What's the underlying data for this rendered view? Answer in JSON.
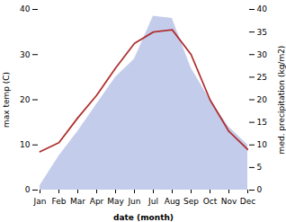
{
  "chart_data": {
    "type": "line",
    "xlabel": "date (month)",
    "ylabel": "max temp (C)",
    "y2label": "med. precipitation (kg/m2)",
    "categories": [
      "Jan",
      "Feb",
      "Mar",
      "Apr",
      "May",
      "Jun",
      "Jul",
      "Aug",
      "Sep",
      "Oct",
      "Nov",
      "Dec"
    ],
    "series": [
      {
        "type": "area",
        "axis": "y2",
        "color": "#b8c4e8",
        "values": [
          1.0,
          7.5,
          13.0,
          19.0,
          25.0,
          29.0,
          38.5,
          38.0,
          27.0,
          20.0,
          14.0,
          10.0
        ]
      },
      {
        "type": "line",
        "color": "#b03030",
        "values": [
          8.5,
          10.5,
          16.0,
          21.0,
          27.0,
          32.5,
          35.0,
          35.5,
          30.0,
          20.0,
          13.0,
          9.0
        ]
      }
    ],
    "ylim": [
      0,
      40
    ],
    "yticks": [
      0,
      10,
      20,
      30,
      40
    ],
    "y2lim": [
      0,
      40
    ],
    "y2ticks": [
      0,
      5,
      10,
      15,
      20,
      25,
      30,
      35,
      40
    ]
  }
}
